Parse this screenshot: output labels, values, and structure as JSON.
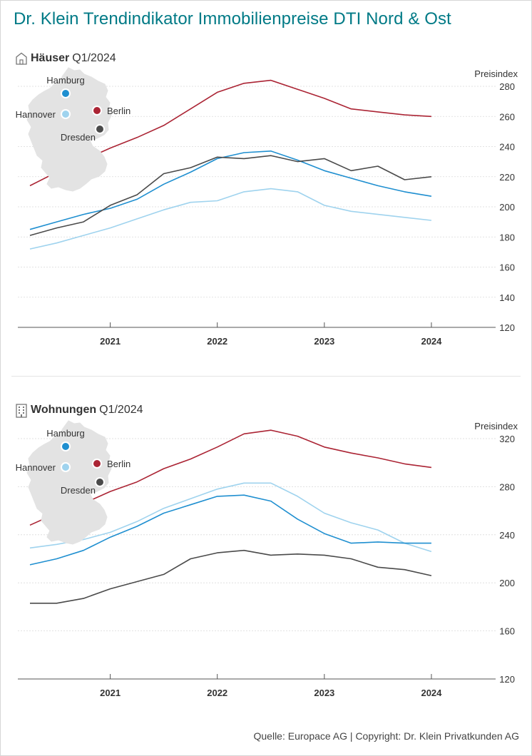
{
  "title": "Dr. Klein Trendindikator Immobilienpreise DTI Nord & Ost",
  "source": "Quelle: Europace AG | Copyright: Dr. Klein Privatkunden AG",
  "legend_cities": [
    {
      "name": "Hamburg",
      "color": "#1f8fd0"
    },
    {
      "name": "Hannover",
      "color": "#9fd3ee"
    },
    {
      "name": "Berlin",
      "color": "#ab2434"
    },
    {
      "name": "Dresden",
      "color": "#4a4a4a"
    }
  ],
  "chart_data": [
    {
      "type": "line",
      "title_bold": "Häuser",
      "title_rest": "Q1/2024",
      "ylabel": "Preisindex",
      "ylim": [
        120,
        280
      ],
      "yticks": [
        120,
        140,
        160,
        180,
        200,
        220,
        240,
        260,
        280
      ],
      "xlim": [
        2020.25,
        2024.5
      ],
      "xticks": [
        2021,
        2022,
        2023,
        2024
      ],
      "xtick_labels": [
        "2021",
        "2022",
        "2023",
        "2024"
      ],
      "x": [
        2020.25,
        2020.5,
        2020.75,
        2021.0,
        2021.25,
        2021.5,
        2021.75,
        2022.0,
        2022.25,
        2022.5,
        2022.75,
        2023.0,
        2023.25,
        2023.5,
        2023.75,
        2024.0
      ],
      "series": [
        {
          "name": "Berlin",
          "color": "#ab2434",
          "values": [
            214,
            223,
            231,
            239,
            246,
            254,
            265,
            276,
            282,
            284,
            278,
            272,
            265,
            263,
            261,
            260
          ]
        },
        {
          "name": "Hamburg",
          "color": "#1f8fd0",
          "values": [
            185,
            190,
            195,
            199,
            205,
            215,
            223,
            232,
            236,
            237,
            231,
            224,
            219,
            214,
            210,
            207
          ]
        },
        {
          "name": "Dresden",
          "color": "#4a4a4a",
          "values": [
            181,
            186,
            190,
            201,
            208,
            222,
            226,
            233,
            232,
            234,
            230,
            232,
            224,
            227,
            218,
            220
          ]
        },
        {
          "name": "Hannover",
          "color": "#9fd3ee",
          "values": [
            172,
            176,
            181,
            186,
            192,
            198,
            203,
            204,
            210,
            212,
            210,
            201,
            197,
            195,
            193,
            191
          ]
        }
      ]
    },
    {
      "type": "line",
      "title_bold": "Wohnungen",
      "title_rest": "Q1/2024",
      "ylabel": "Preisindex",
      "ylim": [
        120,
        320
      ],
      "yticks": [
        120,
        160,
        200,
        240,
        280,
        320
      ],
      "xlim": [
        2020.25,
        2024.5
      ],
      "xticks": [
        2021,
        2022,
        2023,
        2024
      ],
      "xtick_labels": [
        "2021",
        "2022",
        "2023",
        "2024"
      ],
      "x": [
        2020.25,
        2020.5,
        2020.75,
        2021.0,
        2021.25,
        2021.5,
        2021.75,
        2022.0,
        2022.25,
        2022.5,
        2022.75,
        2023.0,
        2023.25,
        2023.5,
        2023.75,
        2024.0
      ],
      "series": [
        {
          "name": "Berlin",
          "color": "#ab2434",
          "values": [
            248,
            258,
            266,
            276,
            284,
            295,
            303,
            313,
            324,
            327,
            322,
            313,
            308,
            304,
            299,
            296
          ]
        },
        {
          "name": "Hannover",
          "color": "#9fd3ee",
          "values": [
            229,
            232,
            236,
            242,
            251,
            262,
            270,
            278,
            283,
            283,
            272,
            258,
            250,
            244,
            233,
            226
          ]
        },
        {
          "name": "Hamburg",
          "color": "#1f8fd0",
          "values": [
            215,
            220,
            227,
            238,
            247,
            258,
            265,
            272,
            273,
            268,
            253,
            241,
            233,
            234,
            233,
            233
          ]
        },
        {
          "name": "Dresden",
          "color": "#4a4a4a",
          "values": [
            183,
            183,
            187,
            195,
            201,
            207,
            220,
            225,
            227,
            223,
            224,
            223,
            220,
            213,
            211,
            206
          ]
        }
      ]
    }
  ]
}
